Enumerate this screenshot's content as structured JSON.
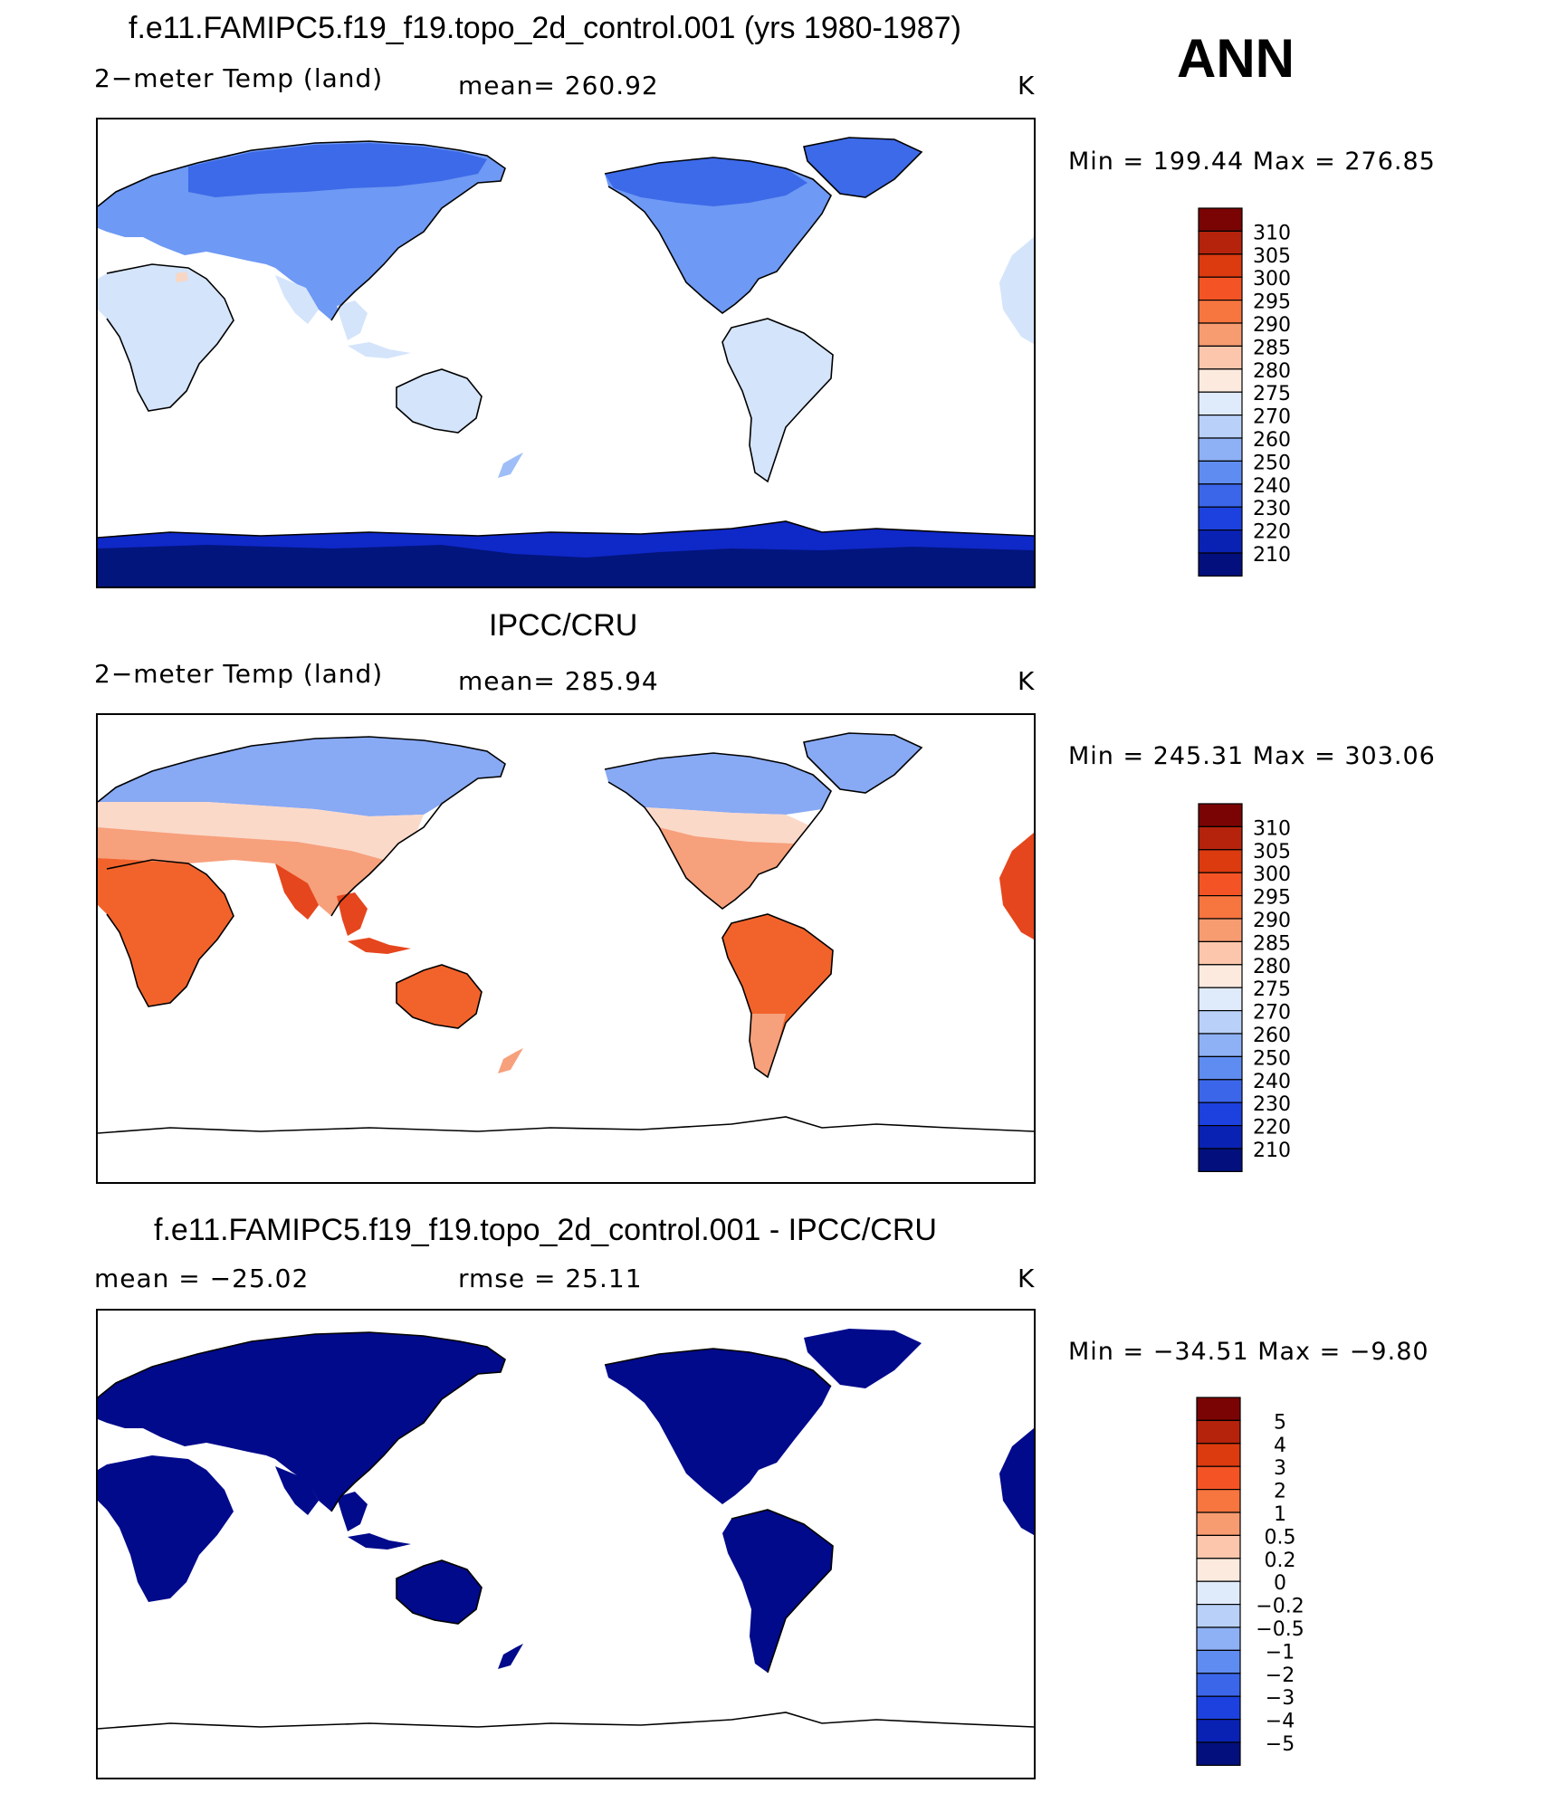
{
  "page": {
    "season": "ANN"
  },
  "panels": [
    {
      "title": "f.e11.FAMIPC5.f19_f19.topo_2d_control.001 (yrs 1980-1987)",
      "variable": "2−meter Temp (land)",
      "stat": "mean=  260.92",
      "units": "K",
      "minmax": "Min  =  199.44  Max  =  276.85",
      "colors": {
        "land": "#6e99f4",
        "land2": "#9fbef7",
        "north": "#3d6ae8",
        "tropics": "#d4e4fb",
        "antarctic": "#0f28c8",
        "antarctic_deep": "#02157d",
        "warm_spot": "#f6d7c5"
      }
    },
    {
      "title": "IPCC/CRU",
      "variable": "2−meter Temp (land)",
      "stat": "mean=  285.94",
      "units": "K",
      "minmax": "Min  =  245.31  Max  =  303.06",
      "colors": {
        "north": "#88a9f4",
        "north2": "#cfe0fb",
        "mid": "#fbd9c9",
        "subtrop": "#f7a07c",
        "tropics": "#f2632b",
        "hot": "#e5461d",
        "antarctic": "#ffffff"
      }
    },
    {
      "title": "f.e11.FAMIPC5.f19_f19.topo_2d_control.001 - IPCC/CRU",
      "variable": "mean  =  −25.02",
      "stat": "rmse  =    25.11",
      "units": "K",
      "minmax": "Min  =  −34.51  Max  =    −9.80",
      "colors": {
        "land": "#000a8b"
      }
    }
  ],
  "colorbars": {
    "temperature": {
      "labels": [
        "310",
        "305",
        "300",
        "295",
        "290",
        "285",
        "280",
        "275",
        "270",
        "260",
        "250",
        "240",
        "230",
        "220",
        "210"
      ],
      "colors": [
        "#7a0403",
        "#b5230c",
        "#dc3a0f",
        "#f45425",
        "#f7753f",
        "#f79b71",
        "#fbc6ab",
        "#fdeadf",
        "#dfeafb",
        "#b9d0f8",
        "#8eb0f5",
        "#5f8cf0",
        "#3b66ea",
        "#1c41df",
        "#0a22b4",
        "#020f7c"
      ]
    },
    "difference": {
      "labels": [
        "5",
        "4",
        "3",
        "2",
        "1",
        "0.5",
        "0.2",
        "0",
        "−0.2",
        "−0.5",
        "−1",
        "−2",
        "−3",
        "−4",
        "−5"
      ],
      "colors": [
        "#7a0403",
        "#b5230c",
        "#dc3a0f",
        "#f45425",
        "#f7753f",
        "#f79b71",
        "#fbc6ab",
        "#fdeadf",
        "#dfeafb",
        "#b9d0f8",
        "#8eb0f5",
        "#5f8cf0",
        "#3b66ea",
        "#1c41df",
        "#0a22b4",
        "#020f7c"
      ]
    }
  }
}
